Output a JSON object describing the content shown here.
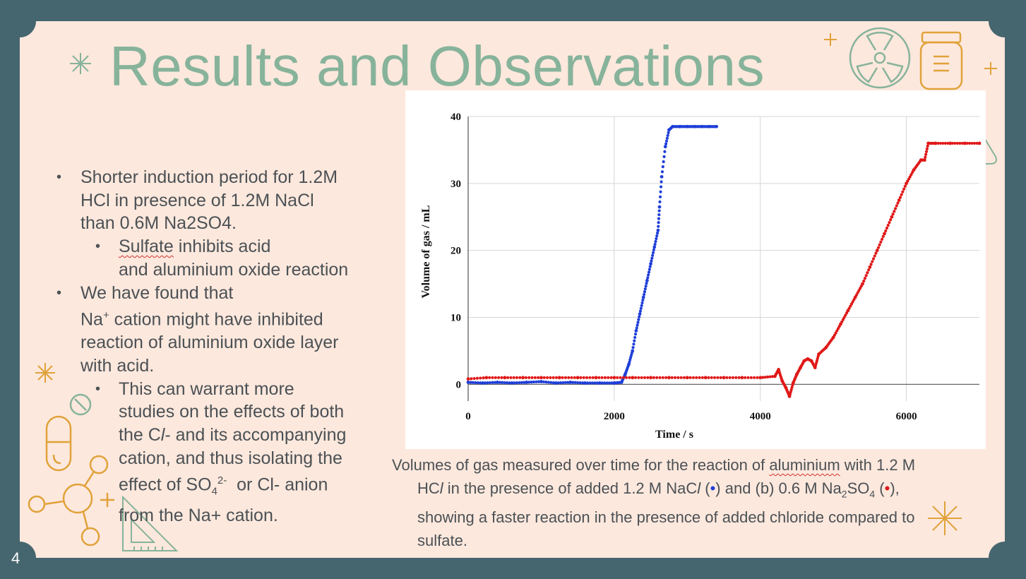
{
  "slide": {
    "title": "Results and Observations",
    "page_number": "4"
  },
  "bullets": {
    "b1_line1": "Shorter induction period for 1.2M",
    "b1_line2": "HCl in presence of 1.2M NaCl",
    "b1_line3": "than 0.6M Na2SO4.",
    "b1a_word": "Sulfate",
    "b1a_rest": " inhibits acid",
    "b1a_line2": "and aluminium oxide reaction",
    "b2_line1": "We have found that",
    "b2_line2_pre": "Na",
    "b2_line2_sup": "+",
    "b2_line2_post": " cation might have inhibited",
    "b2_line3": "reaction of aluminium oxide layer",
    "b2_line4": "with acid.",
    "b2a_line1": "This can warrant more",
    "b2a_line2": "studies on the effects of both",
    "b2a_line3_pre": "the C",
    "b2a_line3_it": "l",
    "b2a_line3_post": "- and its accompanying",
    "b2a_line4": "cation, and thus isolating the",
    "b2a_line5_pre": "effect of SO",
    "b2a_line5_sub": "4",
    "b2a_line5_sup": "2-",
    "b2a_line5_post": "  or Cl- anion",
    "b2a_line6": "from the Na+ cation."
  },
  "caption": {
    "p1": "Volumes of gas measured over time for the reaction of ",
    "p1_sq": "aluminium",
    "p1_end": " with 1.2 M",
    "p2a": "HC",
    "p2b": "l",
    "p2c": " in the presence of added 1.2 M NaC",
    "p2d": "l",
    "p2e": " (",
    "p2_dot_blue": "•",
    "p2f": ") and (b) 0.6 M Na",
    "p2_sub2": "2",
    "p2g": "SO",
    "p2_sub4": "4",
    "p2h": " (",
    "p2_dot_red": "•",
    "p2i": "),",
    "p3": "showing a faster reaction in the presence of added chloride compared to",
    "p4": "sulfate."
  },
  "chart_data": {
    "type": "scatter",
    "xlabel": "Time / s",
    "ylabel": "Volume of gas / mL",
    "xlim": [
      0,
      7000
    ],
    "ylim": [
      -2.5,
      40
    ],
    "xticks": [
      0,
      2000,
      4000,
      6000
    ],
    "yticks": [
      0,
      10,
      20,
      30,
      40
    ],
    "grid": true,
    "series": [
      {
        "color": "#1f3fd8",
        "x": [
          0,
          200,
          400,
          600,
          800,
          1000,
          1200,
          1400,
          1600,
          1800,
          2000,
          2100,
          2150,
          2200,
          2250,
          2300,
          2350,
          2400,
          2450,
          2500,
          2550,
          2600,
          2620,
          2650,
          2700,
          2750,
          2800,
          2900,
          3000,
          3100,
          3200,
          3300,
          3400
        ],
        "y": [
          0.3,
          0.2,
          0.3,
          0.2,
          0.3,
          0.4,
          0.2,
          0.3,
          0.2,
          0.2,
          0.2,
          0.3,
          1.5,
          3.0,
          5.0,
          8.0,
          10.5,
          13.0,
          15.5,
          18.0,
          20.5,
          23.0,
          26.5,
          31.0,
          35.5,
          38.0,
          38.5,
          38.5,
          38.5,
          38.5,
          38.5,
          38.5,
          38.5
        ]
      },
      {
        "color": "#e01818",
        "x": [
          0,
          250,
          500,
          750,
          1000,
          1250,
          1500,
          1750,
          2000,
          2250,
          2500,
          2750,
          3000,
          3250,
          3500,
          3750,
          4000,
          4200,
          4250,
          4300,
          4350,
          4400,
          4450,
          4500,
          4550,
          4600,
          4650,
          4700,
          4750,
          4800,
          4900,
          5000,
          5100,
          5200,
          5300,
          5400,
          5500,
          5600,
          5700,
          5800,
          5900,
          6000,
          6100,
          6200,
          6250,
          6300,
          6400,
          6600,
          6800,
          7000
        ],
        "y": [
          0.8,
          1.0,
          1.0,
          1.0,
          1.0,
          1.0,
          1.0,
          1.0,
          1.0,
          1.0,
          1.0,
          1.0,
          1.0,
          1.0,
          1.0,
          1.0,
          1.0,
          1.2,
          2.2,
          0.5,
          -0.5,
          -1.8,
          0.2,
          1.5,
          2.5,
          3.5,
          3.8,
          3.5,
          2.5,
          4.5,
          5.5,
          7.0,
          9.0,
          11.0,
          13.0,
          15.0,
          17.5,
          20.0,
          22.5,
          25.0,
          27.5,
          30.0,
          32.0,
          33.5,
          33.5,
          36.0,
          36.0,
          36.0,
          36.0,
          36.0
        ]
      }
    ]
  }
}
